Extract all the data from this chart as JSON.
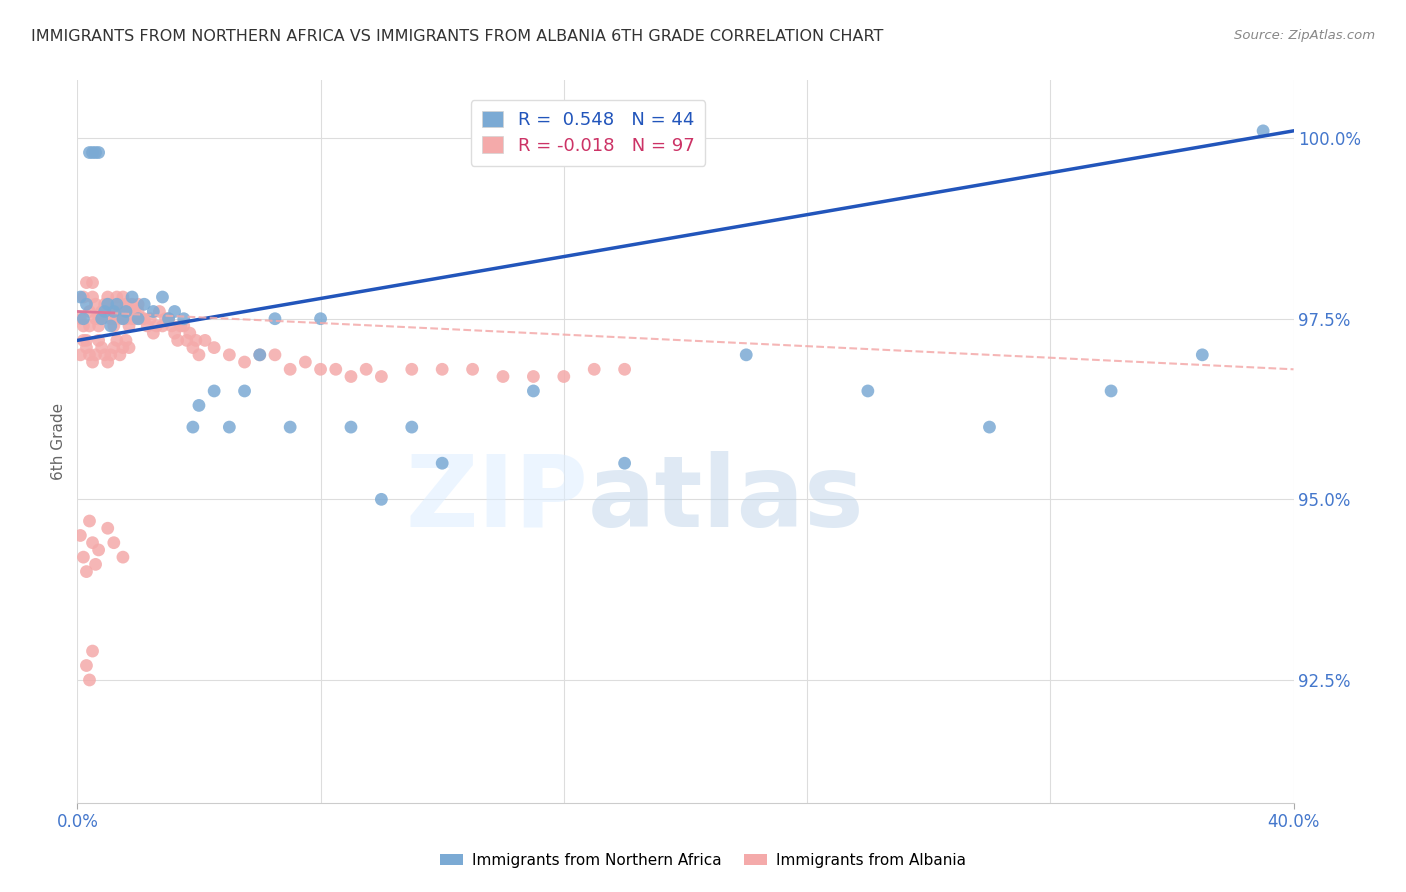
{
  "title": "IMMIGRANTS FROM NORTHERN AFRICA VS IMMIGRANTS FROM ALBANIA 6TH GRADE CORRELATION CHART",
  "source": "Source: ZipAtlas.com",
  "ylabel": "6th Grade",
  "legend_label1": "Immigrants from Northern Africa",
  "legend_label2": "Immigrants from Albania",
  "R_blue": 0.548,
  "N_blue": 44,
  "R_pink": -0.018,
  "N_pink": 97,
  "xlim": [
    0.0,
    0.4
  ],
  "ylim": [
    0.908,
    1.008
  ],
  "yticks": [
    0.925,
    0.95,
    0.975,
    1.0
  ],
  "ytick_labels": [
    "92.5%",
    "95.0%",
    "97.5%",
    "100.0%"
  ],
  "xtick_positions": [
    0.0,
    0.4
  ],
  "xtick_labels": [
    "0.0%",
    "40.0%"
  ],
  "blue_color": "#7BAAD4",
  "pink_color": "#F4AAAA",
  "blue_line_color": "#2255BB",
  "pink_line_color": "#F4AAAA",
  "watermark_zip": "ZIP",
  "watermark_atlas": "atlas",
  "background_color": "#FFFFFF",
  "grid_color": "#DDDDDD",
  "title_color": "#333333",
  "axis_label_color": "#666666",
  "ytick_color": "#4477CC",
  "xtick_color": "#4477CC",
  "blue_x": [
    0.001,
    0.002,
    0.003,
    0.004,
    0.005,
    0.006,
    0.007,
    0.008,
    0.009,
    0.01,
    0.011,
    0.012,
    0.013,
    0.015,
    0.016,
    0.018,
    0.02,
    0.022,
    0.025,
    0.028,
    0.03,
    0.032,
    0.035,
    0.038,
    0.04,
    0.045,
    0.05,
    0.055,
    0.06,
    0.065,
    0.07,
    0.08,
    0.09,
    0.1,
    0.11,
    0.12,
    0.15,
    0.18,
    0.22,
    0.26,
    0.3,
    0.34,
    0.37,
    0.39
  ],
  "blue_y": [
    0.978,
    0.975,
    0.977,
    0.998,
    0.998,
    0.998,
    0.998,
    0.975,
    0.976,
    0.977,
    0.974,
    0.976,
    0.977,
    0.975,
    0.976,
    0.978,
    0.975,
    0.977,
    0.976,
    0.978,
    0.975,
    0.976,
    0.975,
    0.96,
    0.963,
    0.965,
    0.96,
    0.965,
    0.97,
    0.975,
    0.96,
    0.975,
    0.96,
    0.95,
    0.96,
    0.955,
    0.965,
    0.955,
    0.97,
    0.965,
    0.96,
    0.965,
    0.97,
    1.001
  ],
  "pink_x": [
    0.001,
    0.002,
    0.002,
    0.003,
    0.003,
    0.004,
    0.004,
    0.005,
    0.005,
    0.006,
    0.006,
    0.007,
    0.007,
    0.008,
    0.008,
    0.009,
    0.009,
    0.01,
    0.01,
    0.011,
    0.011,
    0.012,
    0.012,
    0.013,
    0.013,
    0.014,
    0.014,
    0.015,
    0.015,
    0.016,
    0.016,
    0.017,
    0.017,
    0.018,
    0.018,
    0.019,
    0.019,
    0.02,
    0.02,
    0.021,
    0.022,
    0.023,
    0.024,
    0.025,
    0.026,
    0.027,
    0.028,
    0.029,
    0.03,
    0.031,
    0.032,
    0.033,
    0.034,
    0.035,
    0.036,
    0.037,
    0.038,
    0.039,
    0.04,
    0.042,
    0.045,
    0.05,
    0.055,
    0.06,
    0.065,
    0.07,
    0.075,
    0.08,
    0.085,
    0.09,
    0.095,
    0.1,
    0.11,
    0.12,
    0.13,
    0.14,
    0.15,
    0.16,
    0.17,
    0.18,
    0.001,
    0.002,
    0.003,
    0.004,
    0.005,
    0.006,
    0.007,
    0.008,
    0.009,
    0.01,
    0.011,
    0.012,
    0.013,
    0.014,
    0.015,
    0.016,
    0.017
  ],
  "pink_y": [
    0.975,
    0.978,
    0.974,
    0.98,
    0.972,
    0.976,
    0.974,
    0.978,
    0.98,
    0.975,
    0.977,
    0.974,
    0.975,
    0.976,
    0.975,
    0.977,
    0.976,
    0.978,
    0.977,
    0.975,
    0.976,
    0.975,
    0.974,
    0.978,
    0.976,
    0.977,
    0.975,
    0.978,
    0.976,
    0.975,
    0.977,
    0.976,
    0.974,
    0.977,
    0.975,
    0.976,
    0.975,
    0.977,
    0.976,
    0.975,
    0.975,
    0.974,
    0.975,
    0.973,
    0.974,
    0.976,
    0.974,
    0.975,
    0.975,
    0.974,
    0.973,
    0.972,
    0.974,
    0.974,
    0.972,
    0.973,
    0.971,
    0.972,
    0.97,
    0.972,
    0.971,
    0.97,
    0.969,
    0.97,
    0.97,
    0.968,
    0.969,
    0.968,
    0.968,
    0.967,
    0.968,
    0.967,
    0.968,
    0.968,
    0.968,
    0.967,
    0.967,
    0.967,
    0.968,
    0.968,
    0.97,
    0.972,
    0.971,
    0.97,
    0.969,
    0.97,
    0.972,
    0.971,
    0.97,
    0.969,
    0.97,
    0.971,
    0.972,
    0.97,
    0.971,
    0.972,
    0.971
  ],
  "extra_pink_x": [
    0.001,
    0.002,
    0.003,
    0.004,
    0.005,
    0.006,
    0.007,
    0.01,
    0.012,
    0.015,
    0.003,
    0.004,
    0.005
  ],
  "extra_pink_y": [
    0.945,
    0.942,
    0.94,
    0.947,
    0.944,
    0.941,
    0.943,
    0.946,
    0.944,
    0.942,
    0.927,
    0.925,
    0.929
  ]
}
